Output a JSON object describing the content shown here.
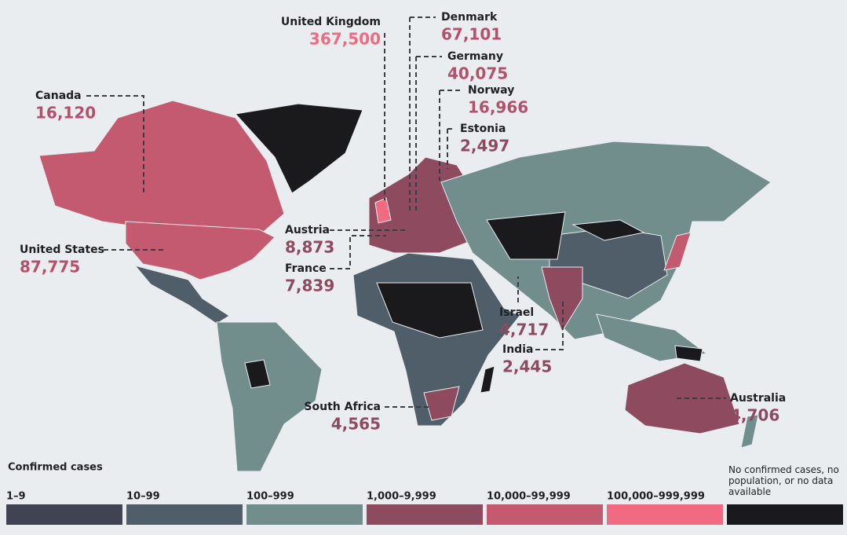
{
  "callouts": [
    {
      "name": "United Kingdom",
      "value": "367,500",
      "color": "#f06b82"
    },
    {
      "name": "Denmark",
      "value": "67,101",
      "color": "#b5506a"
    },
    {
      "name": "Germany",
      "value": "40,075",
      "color": "#b5506a"
    },
    {
      "name": "Norway",
      "value": "16,966",
      "color": "#b5506a"
    },
    {
      "name": "Estonia",
      "value": "2,497",
      "color": "#8e4a5e"
    },
    {
      "name": "Canada",
      "value": "16,120",
      "color": "#b5506a"
    },
    {
      "name": "United States",
      "value": "87,775",
      "color": "#b5506a"
    },
    {
      "name": "Austria",
      "value": "8,873",
      "color": "#8e4a5e"
    },
    {
      "name": "France",
      "value": "7,839",
      "color": "#8e4a5e"
    },
    {
      "name": "Israel",
      "value": "4,717",
      "color": "#8e4a5e"
    },
    {
      "name": "India",
      "value": "2,445",
      "color": "#8e4a5e"
    },
    {
      "name": "South Africa",
      "value": "4,565",
      "color": "#8e4a5e"
    },
    {
      "name": "Australia",
      "value": "4,706",
      "color": "#8e4a5e"
    }
  ],
  "legend": {
    "title": "Confirmed cases",
    "items": [
      {
        "label": "1–9",
        "color": "#3f4352"
      },
      {
        "label": "10–99",
        "color": "#4f5e69"
      },
      {
        "label": "100–999",
        "color": "#718d8c"
      },
      {
        "label": "1,000–9,999",
        "color": "#8e4a5e"
      },
      {
        "label": "10,000–99,999",
        "color": "#c45a6f"
      },
      {
        "label": "100,000–999,999",
        "color": "#f06b82"
      },
      {
        "label": "No confirmed cases, no population, or no data available",
        "color": "#1a1a1c"
      }
    ]
  }
}
